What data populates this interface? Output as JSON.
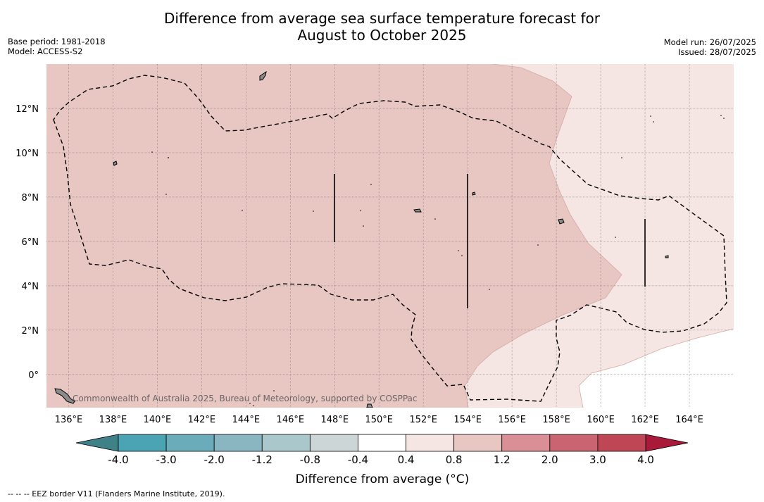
{
  "title_line1": "Difference from average sea surface temperature forecast for",
  "title_line2": "August to October 2025",
  "base_period": "Base period: 1981-2018",
  "model": "Model: ACCESS-S2",
  "model_run": "Model run: 26/07/2025",
  "issued": "Issued: 28/07/2025",
  "copyright": "Commonwealth of Australia 2025, Bureau of Meteorology, supported by COSPPac",
  "footnote": "--  --  -- EEZ border V11 (Flanders Marine Institute, 2019).",
  "map": {
    "lon_ticks": [
      "136°E",
      "138°E",
      "140°E",
      "142°E",
      "144°E",
      "146°E",
      "148°E",
      "150°E",
      "152°E",
      "154°E",
      "156°E",
      "158°E",
      "160°E",
      "162°E",
      "164°E"
    ],
    "lat_ticks": [
      "12°N",
      "10°N",
      "8°N",
      "6°N",
      "4°N",
      "2°N",
      "0°"
    ],
    "lon_range": [
      135,
      166
    ],
    "lat_range": [
      -1.5,
      14
    ],
    "colors": {
      "anomaly_0p8_1p2": "#e8c6c2",
      "anomaly_0p4_0p8": "#f5e6e4",
      "anomaly_neg0p4_0p4": "#ffffff"
    }
  },
  "colorbar": {
    "title": "Difference from average (°C)",
    "labels": [
      "-4.0",
      "-3.0",
      "-2.0",
      "-1.2",
      "-0.8",
      "-0.4",
      "0.4",
      "0.8",
      "1.2",
      "2.0",
      "3.0",
      "4.0"
    ],
    "colors": {
      "under": "#3e8288",
      "bins": [
        "#4aa4b4",
        "#6aacba",
        "#8ab6c2",
        "#aac8cc",
        "#cdd6d6",
        "#ffffff",
        "#f5e6e4",
        "#e8c6c2",
        "#d98f95",
        "#c96470",
        "#be4655"
      ],
      "over": "#a8193a"
    }
  }
}
